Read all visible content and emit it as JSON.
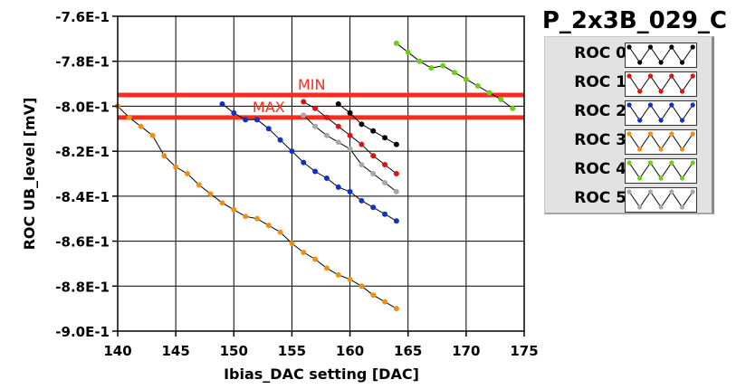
{
  "chart_data": {
    "type": "line",
    "title": "P_2x3B_029_C",
    "xlabel": "Ibias_DAC setting [DAC]",
    "ylabel": "ROC UB_level [mV]",
    "xlim": [
      140,
      175
    ],
    "ylim": [
      -0.9,
      -0.76
    ],
    "x_ticks": [
      "140",
      "145",
      "150",
      "155",
      "160",
      "165",
      "170",
      "175"
    ],
    "y_ticks": [
      "-7.6E-1",
      "-7.8E-1",
      "-8.0E-1",
      "-8.2E-1",
      "-8.4E-1",
      "-8.6E-1",
      "-8.8E-1",
      "-9.0E-1"
    ],
    "grid": true,
    "legend_position": "right",
    "reference_lines": [
      {
        "label": "MIN",
        "y": -0.795,
        "color": "#ff2a1a"
      },
      {
        "label": "MAX",
        "y": -0.805,
        "color": "#ff2a1a"
      }
    ],
    "series": [
      {
        "name": "ROC 0",
        "color": "#000000",
        "x": [
          159,
          160,
          161,
          162,
          163,
          164
        ],
        "y": [
          -0.799,
          -0.803,
          -0.808,
          -0.811,
          -0.814,
          -0.817
        ]
      },
      {
        "name": "ROC 1",
        "color": "#e01010",
        "x": [
          156,
          157,
          158,
          159,
          160,
          161,
          162,
          163,
          164
        ],
        "y": [
          -0.798,
          -0.801,
          -0.805,
          -0.809,
          -0.813,
          -0.817,
          -0.822,
          -0.826,
          -0.83
        ]
      },
      {
        "name": "ROC 2",
        "color": "#1030c8",
        "x": [
          149,
          150,
          151,
          152,
          153,
          154,
          155,
          156,
          157,
          158,
          159,
          160,
          161,
          162,
          163,
          164
        ],
        "y": [
          -0.799,
          -0.803,
          -0.806,
          -0.806,
          -0.81,
          -0.815,
          -0.82,
          -0.825,
          -0.829,
          -0.832,
          -0.836,
          -0.838,
          -0.842,
          -0.845,
          -0.848,
          -0.851
        ]
      },
      {
        "name": "ROC 3",
        "color": "#f09010",
        "x": [
          140,
          141,
          142,
          143,
          144,
          145,
          146,
          147,
          148,
          149,
          150,
          151,
          152,
          153,
          154,
          155,
          156,
          157,
          158,
          159,
          160,
          161,
          162,
          163,
          164
        ],
        "y": [
          -0.8,
          -0.805,
          -0.809,
          -0.813,
          -0.822,
          -0.827,
          -0.83,
          -0.835,
          -0.839,
          -0.843,
          -0.846,
          -0.849,
          -0.85,
          -0.853,
          -0.856,
          -0.861,
          -0.865,
          -0.868,
          -0.872,
          -0.875,
          -0.877,
          -0.88,
          -0.884,
          -0.887,
          -0.89
        ]
      },
      {
        "name": "ROC 4",
        "color": "#6cd010",
        "x": [
          164,
          165,
          166,
          167,
          168,
          169,
          170,
          171,
          172,
          173,
          174
        ],
        "y": [
          -0.772,
          -0.776,
          -0.78,
          -0.783,
          -0.782,
          -0.785,
          -0.788,
          -0.791,
          -0.794,
          -0.797,
          -0.801
        ]
      },
      {
        "name": "ROC 5",
        "color": "#a8a8a8",
        "x": [
          156,
          157,
          158,
          159,
          160,
          161,
          162,
          163,
          164
        ],
        "y": [
          -0.804,
          -0.809,
          -0.813,
          -0.816,
          -0.819,
          -0.826,
          -0.83,
          -0.834,
          -0.838
        ]
      }
    ]
  }
}
